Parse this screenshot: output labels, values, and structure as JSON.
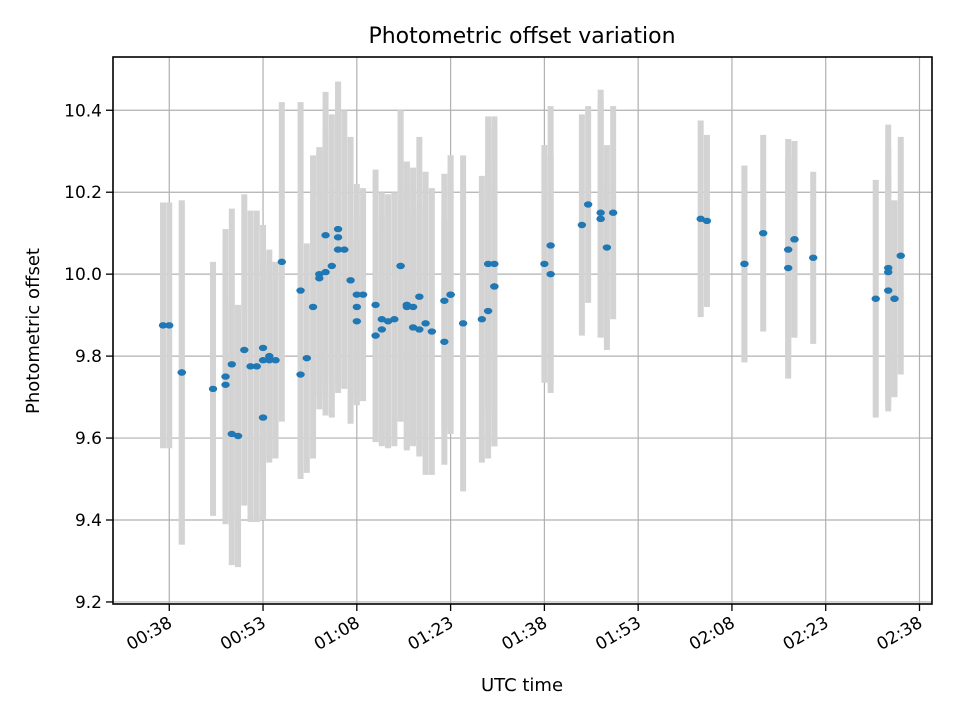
{
  "chart_data": {
    "type": "scatter",
    "title": "Photometric offset variation",
    "xlabel": "UTC time",
    "ylabel": "Photometric offset",
    "x_unit": "UTC time (HH:MM)",
    "xlim": [
      "00:29",
      "02:40"
    ],
    "ylim": [
      9.195,
      10.53
    ],
    "grid": true,
    "x_tick_labels": [
      "00:38",
      "00:53",
      "01:08",
      "01:23",
      "01:38",
      "01:53",
      "02:08",
      "02:23",
      "02:38"
    ],
    "y_tick_labels": [
      "9.2",
      "9.4",
      "9.6",
      "9.8",
      "10.0",
      "10.2",
      "10.4"
    ],
    "y_ticks": [
      9.2,
      9.4,
      9.6,
      9.8,
      10.0,
      10.2,
      10.4
    ],
    "colors": {
      "points": "#1f77b4",
      "errorbars": "#d3d3d3",
      "grid": "#b0b0b0"
    },
    "series": [
      {
        "marker": "point",
        "errorbar": "symmetric, light gray",
        "x": [
          "00:37",
          "00:38",
          "00:40",
          "00:40",
          "00:45",
          "00:47",
          "00:47",
          "00:48",
          "00:48",
          "00:49",
          "00:50",
          "00:51",
          "00:52",
          "00:53",
          "00:53",
          "00:53",
          "00:54",
          "00:54",
          "00:55",
          "00:56",
          "00:59",
          "00:59",
          "01:00",
          "01:01",
          "01:02",
          "01:02",
          "01:03",
          "01:03",
          "01:04",
          "01:05",
          "01:05",
          "01:05",
          "01:06",
          "01:07",
          "01:08",
          "01:08",
          "01:08",
          "01:09",
          "01:11",
          "01:11",
          "01:12",
          "01:12",
          "01:13",
          "01:14",
          "01:15",
          "01:15",
          "01:16",
          "01:16",
          "01:16",
          "01:17",
          "01:17",
          "01:18",
          "01:18",
          "01:19",
          "01:20",
          "01:22",
          "01:22",
          "01:23",
          "01:23",
          "01:25",
          "01:28",
          "01:29",
          "01:29",
          "01:30",
          "01:30",
          "01:30",
          "01:38",
          "01:39",
          "01:39",
          "01:44",
          "01:45",
          "01:47",
          "01:47",
          "01:47",
          "01:48",
          "01:49",
          "02:03",
          "02:04",
          "02:10",
          "02:10",
          "02:13",
          "02:17",
          "02:17",
          "02:18",
          "02:18",
          "02:21",
          "02:31",
          "02:33",
          "02:33",
          "02:33",
          "02:34",
          "02:34",
          "02:35"
        ],
        "y": [
          9.875,
          9.875,
          9.76,
          9.76,
          9.72,
          9.73,
          9.75,
          9.78,
          9.61,
          9.605,
          9.815,
          9.775,
          9.775,
          9.65,
          9.82,
          9.79,
          9.8,
          9.79,
          9.79,
          10.03,
          9.96,
          9.755,
          9.795,
          9.92,
          10.0,
          9.99,
          10.095,
          10.005,
          10.02,
          10.09,
          10.11,
          10.06,
          10.06,
          9.985,
          9.95,
          9.885,
          9.92,
          9.95,
          9.925,
          9.85,
          9.865,
          9.89,
          9.885,
          9.89,
          10.02,
          10.02,
          9.92,
          9.925,
          9.925,
          9.92,
          9.87,
          9.865,
          9.945,
          9.88,
          9.86,
          9.835,
          9.935,
          9.95,
          9.95,
          9.88,
          9.89,
          9.91,
          10.025,
          10.025,
          9.97,
          9.97,
          10.025,
          10.07,
          10.0,
          10.12,
          10.17,
          10.15,
          10.135,
          10.135,
          10.065,
          10.15,
          10.135,
          10.13,
          10.025,
          10.025,
          10.1,
          10.015,
          10.06,
          10.085,
          10.085,
          10.04,
          9.94,
          10.015,
          10.005,
          9.96,
          9.94,
          9.94,
          10.045
        ],
        "yerr": [
          0.3,
          0.3,
          0.42,
          0.42,
          0.31,
          0.34,
          0.36,
          0.38,
          0.32,
          0.32,
          0.38,
          0.38,
          0.38,
          0.25,
          0.3,
          0.24,
          0.26,
          0.24,
          0.24,
          0.39,
          0.46,
          0.23,
          0.28,
          0.37,
          0.3,
          0.32,
          0.35,
          0.35,
          0.37,
          0.38,
          0.36,
          0.34,
          0.34,
          0.35,
          0.27,
          0.2,
          0.22,
          0.26,
          0.33,
          0.26,
          0.28,
          0.31,
          0.31,
          0.31,
          0.38,
          0.38,
          0.35,
          0.35,
          0.35,
          0.34,
          0.28,
          0.3,
          0.39,
          0.37,
          0.35,
          0.3,
          0.31,
          0.34,
          0.34,
          0.41,
          0.35,
          0.36,
          0.36,
          0.36,
          0.39,
          0.39,
          0.29,
          0.34,
          0.29,
          0.27,
          0.24,
          0.3,
          0.29,
          0.29,
          0.25,
          0.26,
          0.24,
          0.21,
          0.24,
          0.24,
          0.24,
          0.27,
          0.27,
          0.24,
          0.24,
          0.21,
          0.29,
          0.35,
          0.3,
          0.28,
          0.24,
          0.24,
          0.29
        ]
      }
    ]
  }
}
